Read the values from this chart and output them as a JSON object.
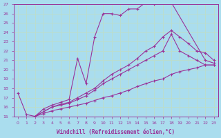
{
  "xlabel": "Windchill (Refroidissement éolien,°C)",
  "xlim": [
    -0.5,
    23.5
  ],
  "ylim": [
    15,
    27
  ],
  "xticks": [
    0,
    1,
    2,
    3,
    4,
    5,
    6,
    7,
    8,
    9,
    10,
    11,
    12,
    13,
    14,
    15,
    16,
    17,
    18,
    19,
    20,
    21,
    22,
    23
  ],
  "yticks": [
    15,
    16,
    17,
    18,
    19,
    20,
    21,
    22,
    23,
    24,
    25,
    26,
    27
  ],
  "bg_color": "#aaddee",
  "line_color": "#993399",
  "grid_color": "#bbddcc",
  "lines": [
    {
      "x": [
        0,
        1,
        2,
        3,
        4,
        5,
        6,
        7,
        8,
        9,
        10,
        11,
        12,
        13,
        14,
        15,
        16,
        17,
        18,
        22,
        23
      ],
      "y": [
        17.5,
        15.2,
        15.0,
        15.8,
        16.2,
        16.5,
        16.8,
        21.2,
        18.5,
        23.5,
        26.0,
        26.0,
        25.8,
        26.5,
        26.5,
        27.2,
        27.0,
        27.2,
        27.2,
        21.0,
        20.7
      ]
    },
    {
      "x": [
        2,
        3,
        4,
        5,
        6,
        7,
        8,
        9,
        10,
        11,
        12,
        13,
        14,
        15,
        16,
        17,
        18,
        19,
        20,
        21,
        22,
        23
      ],
      "y": [
        15.0,
        15.5,
        16.0,
        16.3,
        16.5,
        17.0,
        17.5,
        18.0,
        18.8,
        19.5,
        20.0,
        20.5,
        21.2,
        22.0,
        22.5,
        23.5,
        24.2,
        23.5,
        22.8,
        22.0,
        21.8,
        21.0
      ]
    },
    {
      "x": [
        2,
        3,
        4,
        5,
        6,
        7,
        8,
        9,
        10,
        11,
        12,
        13,
        14,
        15,
        16,
        17,
        18,
        19,
        20,
        21,
        22,
        23
      ],
      "y": [
        15.0,
        15.5,
        16.0,
        16.2,
        16.4,
        16.8,
        17.2,
        17.8,
        18.5,
        19.0,
        19.5,
        20.0,
        20.5,
        21.0,
        21.5,
        22.0,
        23.8,
        22.0,
        21.5,
        21.0,
        20.5,
        20.5
      ]
    },
    {
      "x": [
        2,
        3,
        4,
        5,
        6,
        7,
        8,
        9,
        10,
        11,
        12,
        13,
        14,
        15,
        16,
        17,
        18,
        19,
        20,
        21,
        22,
        23
      ],
      "y": [
        15.0,
        15.3,
        15.6,
        15.8,
        16.0,
        16.2,
        16.4,
        16.7,
        17.0,
        17.2,
        17.5,
        17.8,
        18.2,
        18.5,
        18.8,
        19.0,
        19.5,
        19.8,
        20.0,
        20.2,
        20.5,
        20.5
      ]
    }
  ]
}
